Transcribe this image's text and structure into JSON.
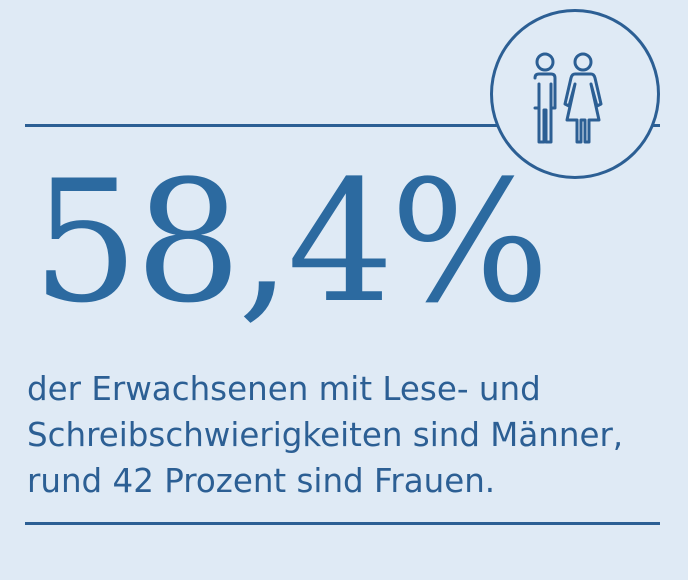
{
  "icon": "man-woman-icon",
  "colors": {
    "background": "#dfeaf5",
    "accent": "#2c5f94",
    "number": "#2c6aa0"
  },
  "statistic": {
    "value": "58,4%"
  },
  "caption": {
    "line1": "der Erwachsenen mit Lese- und",
    "line2": "Schreibschwierigkeiten sind Männer,",
    "line3": "rund 42 Prozent sind Frauen."
  }
}
